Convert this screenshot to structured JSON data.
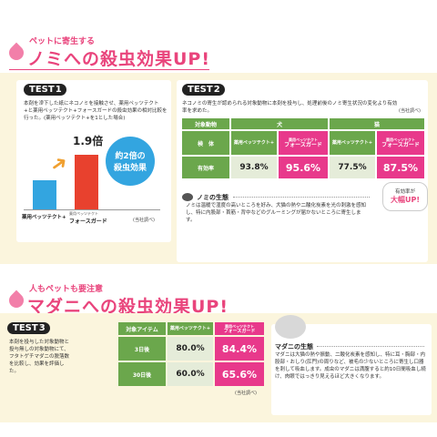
{
  "section1": {
    "kicker": "ペットに寄生する",
    "headline": "ノミへの殺虫効果UP!",
    "test1": {
      "label": "TEST",
      "num": "1",
      "desc": "本剤を滲下した紙にネコノミを接触させ、薬用ペッツテクト+と薬用ペッツテクト+フォースガードの殺虫効果の相対比較を行った。(薬用ペッツテクト+を1とした場合)",
      "bar_value": "1.9倍",
      "badge_line1": "約2倍の",
      "badge_line2": "殺虫効果",
      "source": "(当社調べ)",
      "product_a": "薬用ペッツテクト+",
      "product_b_small": "薬用ペッツテクト",
      "product_b": "フォースガード"
    },
    "test2": {
      "label": "TEST",
      "num": "2",
      "desc": "ネコノミの寄生が認められる対象動物に本剤を投与し、処理前後のノミ寄生状況の変化より有効率を求めた。",
      "source": "(当社調べ)",
      "header_animal": "対象動物",
      "header_dog": "犬",
      "header_cat": "猫",
      "row_sample": "検　体",
      "prod_a": "薬用ペッツテクト+",
      "prod_b_small": "薬用ペッツテクト",
      "prod_b": "フォースガード",
      "row_rate": "有効率",
      "dog_a": "93.8%",
      "dog_b": "95.6%",
      "cat_a": "77.5%",
      "cat_b": "87.5%",
      "callout_1": "有効率が",
      "callout_2": "大幅UP!"
    },
    "flea": {
      "title": "ノミの生態",
      "body": "ノミは温暖で湿度の高いところを好み、犬猫の熱や二酸化炭素を光の刺激を感知し、特に内股部・首筋・背中などのグルーミングが届かないところに寄生します。"
    }
  },
  "section2": {
    "kicker": "人もペットも要注意",
    "headline": "マダニへの殺虫効果UP!",
    "test3": {
      "label": "TEST",
      "num": "3",
      "desc": "本剤を投与した対象動物と投与無しの対象動物にて、フタトゲチマダニの脱落数を比較し、効果を評価した。",
      "header_item": "対象アイテム",
      "prod_a": "薬用ペッツテクト+",
      "prod_b_small": "薬用ペッツテクト",
      "prod_b": "フォースガード",
      "row1": "3日後",
      "row1_a": "80.0%",
      "row1_b": "84.4%",
      "row2": "30日後",
      "row2_a": "60.0%",
      "row2_b": "65.6%",
      "source": "(当社調べ)"
    },
    "tick": {
      "title": "マダニの生態",
      "body": "マダニは大猫の熱や振動、二酸化炭素を感知し、特に耳・胸部・内股部・おしり(肛門)の周りなど、被毛の少ないところに寄生し口器を刺して吸血します。成虫のマダニは満腹すると約10日間吸血し続け、肉眼ではっきり見えるほど大きくなります。"
    }
  },
  "colors": {
    "accent_pink": "#e9447c",
    "bar_blue": "#33a5e0",
    "bar_red": "#e8412e",
    "table_green": "#6ba74c",
    "highlight_pink": "#e8398b",
    "cream": "#fbf5dd"
  }
}
